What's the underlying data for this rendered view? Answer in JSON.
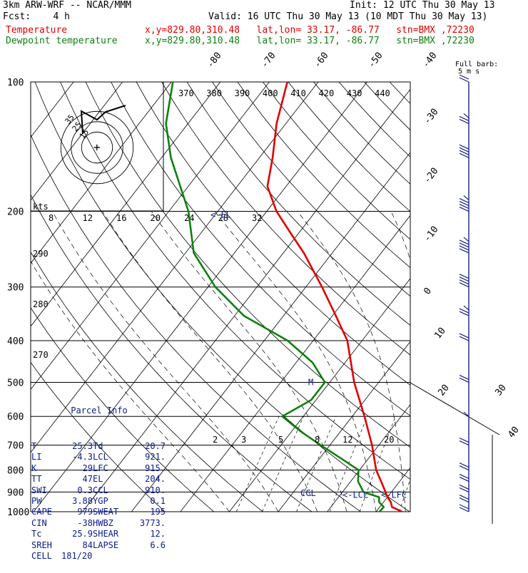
{
  "header": {
    "model": "3km ARW-WRF -- NCAR/MMM",
    "init": "Init: 12 UTC Thu 30 May 13",
    "fcst": "Fcst:    4 h",
    "valid": "Valid: 16 UTC Thu 30 May 13 (10 MDT Thu 30 May 13)",
    "temp_label": "Temperature",
    "temp_loc": "x,y=829.80,310.48   lat,lon= 33.17, -86.77   stn=BMX ,72230",
    "dew_label": "Dewpoint temperature",
    "dew_loc": "x,y=829.80,310.48   lat,lon= 33.17, -86.77   stn=BMX ,72230"
  },
  "colors": {
    "temperature": "#e00000",
    "dewpoint": "#108010",
    "wind": "#1a237e",
    "info": "#0a1a8a"
  },
  "chart_data": {
    "type": "line",
    "title": "",
    "x_axis": "temperature (skewed isotherms)",
    "y_axis": "pressure (hPa, log)",
    "ylim": [
      1000,
      100
    ],
    "pressure_ticks": [
      100,
      200,
      300,
      400,
      500,
      600,
      700,
      800,
      900,
      1000
    ],
    "isotherm_labels": [
      "-80",
      "-70",
      "-60",
      "-50",
      "-40",
      "-30",
      "-20",
      "-10",
      "0",
      "10",
      "20",
      "30",
      "40"
    ],
    "theta_labels_top": [
      "370",
      "380",
      "390",
      "400",
      "410",
      "420",
      "430",
      "440"
    ],
    "theta_labels_left": [
      "290",
      "280",
      "270"
    ],
    "mixing_ratio_labels": [
      "2",
      "3",
      "5",
      "8",
      "12",
      "20"
    ],
    "series": [
      {
        "name": "Temperature",
        "points": [
          [
            1000,
            25.3
          ],
          [
            975,
            22.5
          ],
          [
            950,
            21.5
          ],
          [
            925,
            20.0
          ],
          [
            900,
            18.8
          ],
          [
            850,
            16.2
          ],
          [
            800,
            13.4
          ],
          [
            700,
            8.6
          ],
          [
            600,
            2.5
          ],
          [
            500,
            -5.0
          ],
          [
            400,
            -13.0
          ],
          [
            350,
            -19.3
          ],
          [
            300,
            -26.7
          ],
          [
            250,
            -35.8
          ],
          [
            225,
            -41.6
          ],
          [
            200,
            -48.0
          ],
          [
            175,
            -53.8
          ],
          [
            150,
            -57.3
          ],
          [
            125,
            -61.9
          ],
          [
            100,
            -66.3
          ]
        ]
      },
      {
        "name": "Dewpoint temperature",
        "points": [
          [
            1000,
            20.7
          ],
          [
            975,
            20.8
          ],
          [
            950,
            19.1
          ],
          [
            925,
            18.3
          ],
          [
            900,
            14.3
          ],
          [
            850,
            11.5
          ],
          [
            800,
            9.8
          ],
          [
            750,
            4.2
          ],
          [
            700,
            -1.9
          ],
          [
            650,
            -8.2
          ],
          [
            600,
            -14.3
          ],
          [
            550,
            -11.0
          ],
          [
            500,
            -11.0
          ],
          [
            450,
            -16.6
          ],
          [
            400,
            -25.2
          ],
          [
            350,
            -38.1
          ],
          [
            300,
            -48.5
          ],
          [
            250,
            -58.3
          ],
          [
            200,
            -66.0
          ],
          [
            150,
            -78.1
          ],
          [
            125,
            -84.5
          ],
          [
            100,
            -89.7
          ]
        ]
      }
    ],
    "wind_barbs": [
      {
        "p": 1000,
        "kt": 8
      },
      {
        "p": 950,
        "kt": 10
      },
      {
        "p": 900,
        "kt": 10
      },
      {
        "p": 850,
        "kt": 10
      },
      {
        "p": 800,
        "kt": 10
      },
      {
        "p": 700,
        "kt": 10
      },
      {
        "p": 600,
        "kt": 5
      },
      {
        "p": 500,
        "kt": 10
      },
      {
        "p": 400,
        "kt": 10
      },
      {
        "p": 350,
        "kt": 15
      },
      {
        "p": 300,
        "kt": 20
      },
      {
        "p": 250,
        "kt": 25
      },
      {
        "p": 200,
        "kt": 25
      },
      {
        "p": 150,
        "kt": 20
      },
      {
        "p": 125,
        "kt": 15
      },
      {
        "p": 100,
        "kt": 10
      }
    ],
    "barb_legend": [
      "Full barb:",
      "5 m s"
    ],
    "level_labels": [
      {
        "text": "CCL",
        "p": 905
      },
      {
        "text": "<-LCL",
        "p": 915
      },
      {
        "text": "<-LFC",
        "p": 915
      },
      {
        "text": "<-EL",
        "p": 204
      },
      {
        "text": "M",
        "p": 500
      }
    ],
    "hodograph": {
      "rings_kt": [
        15,
        25,
        35
      ],
      "ring_labels": [
        "15",
        "25",
        "35"
      ],
      "kts_label": "kts",
      "scale_ticks": [
        "8",
        "12",
        "16",
        "20",
        "24",
        "28",
        "32"
      ]
    }
  },
  "parcel_info": {
    "title": "Parcel Info",
    "rows": [
      [
        "T",
        "25.3",
        "Td",
        "20.7"
      ],
      [
        "LI",
        "-4.3",
        "LCL",
        "921."
      ],
      [
        "K",
        "29",
        "LFC",
        "915."
      ],
      [
        "TT",
        "47",
        "EL",
        "204."
      ],
      [
        "SWI",
        "0.3",
        "CCL",
        "910."
      ],
      [
        "PW",
        "3.88",
        "YGP",
        "0.1"
      ],
      [
        "CAPE",
        "979",
        "SWEAT",
        "195"
      ],
      [
        "CIN",
        "-38",
        "HWBZ",
        "3773."
      ],
      [
        "Tc",
        "25.9",
        "SHEAR",
        "12."
      ],
      [
        "SREH",
        "84",
        "LAPSE",
        "6.6"
      ],
      [
        "CELL",
        "181/20",
        "",
        ""
      ]
    ]
  }
}
